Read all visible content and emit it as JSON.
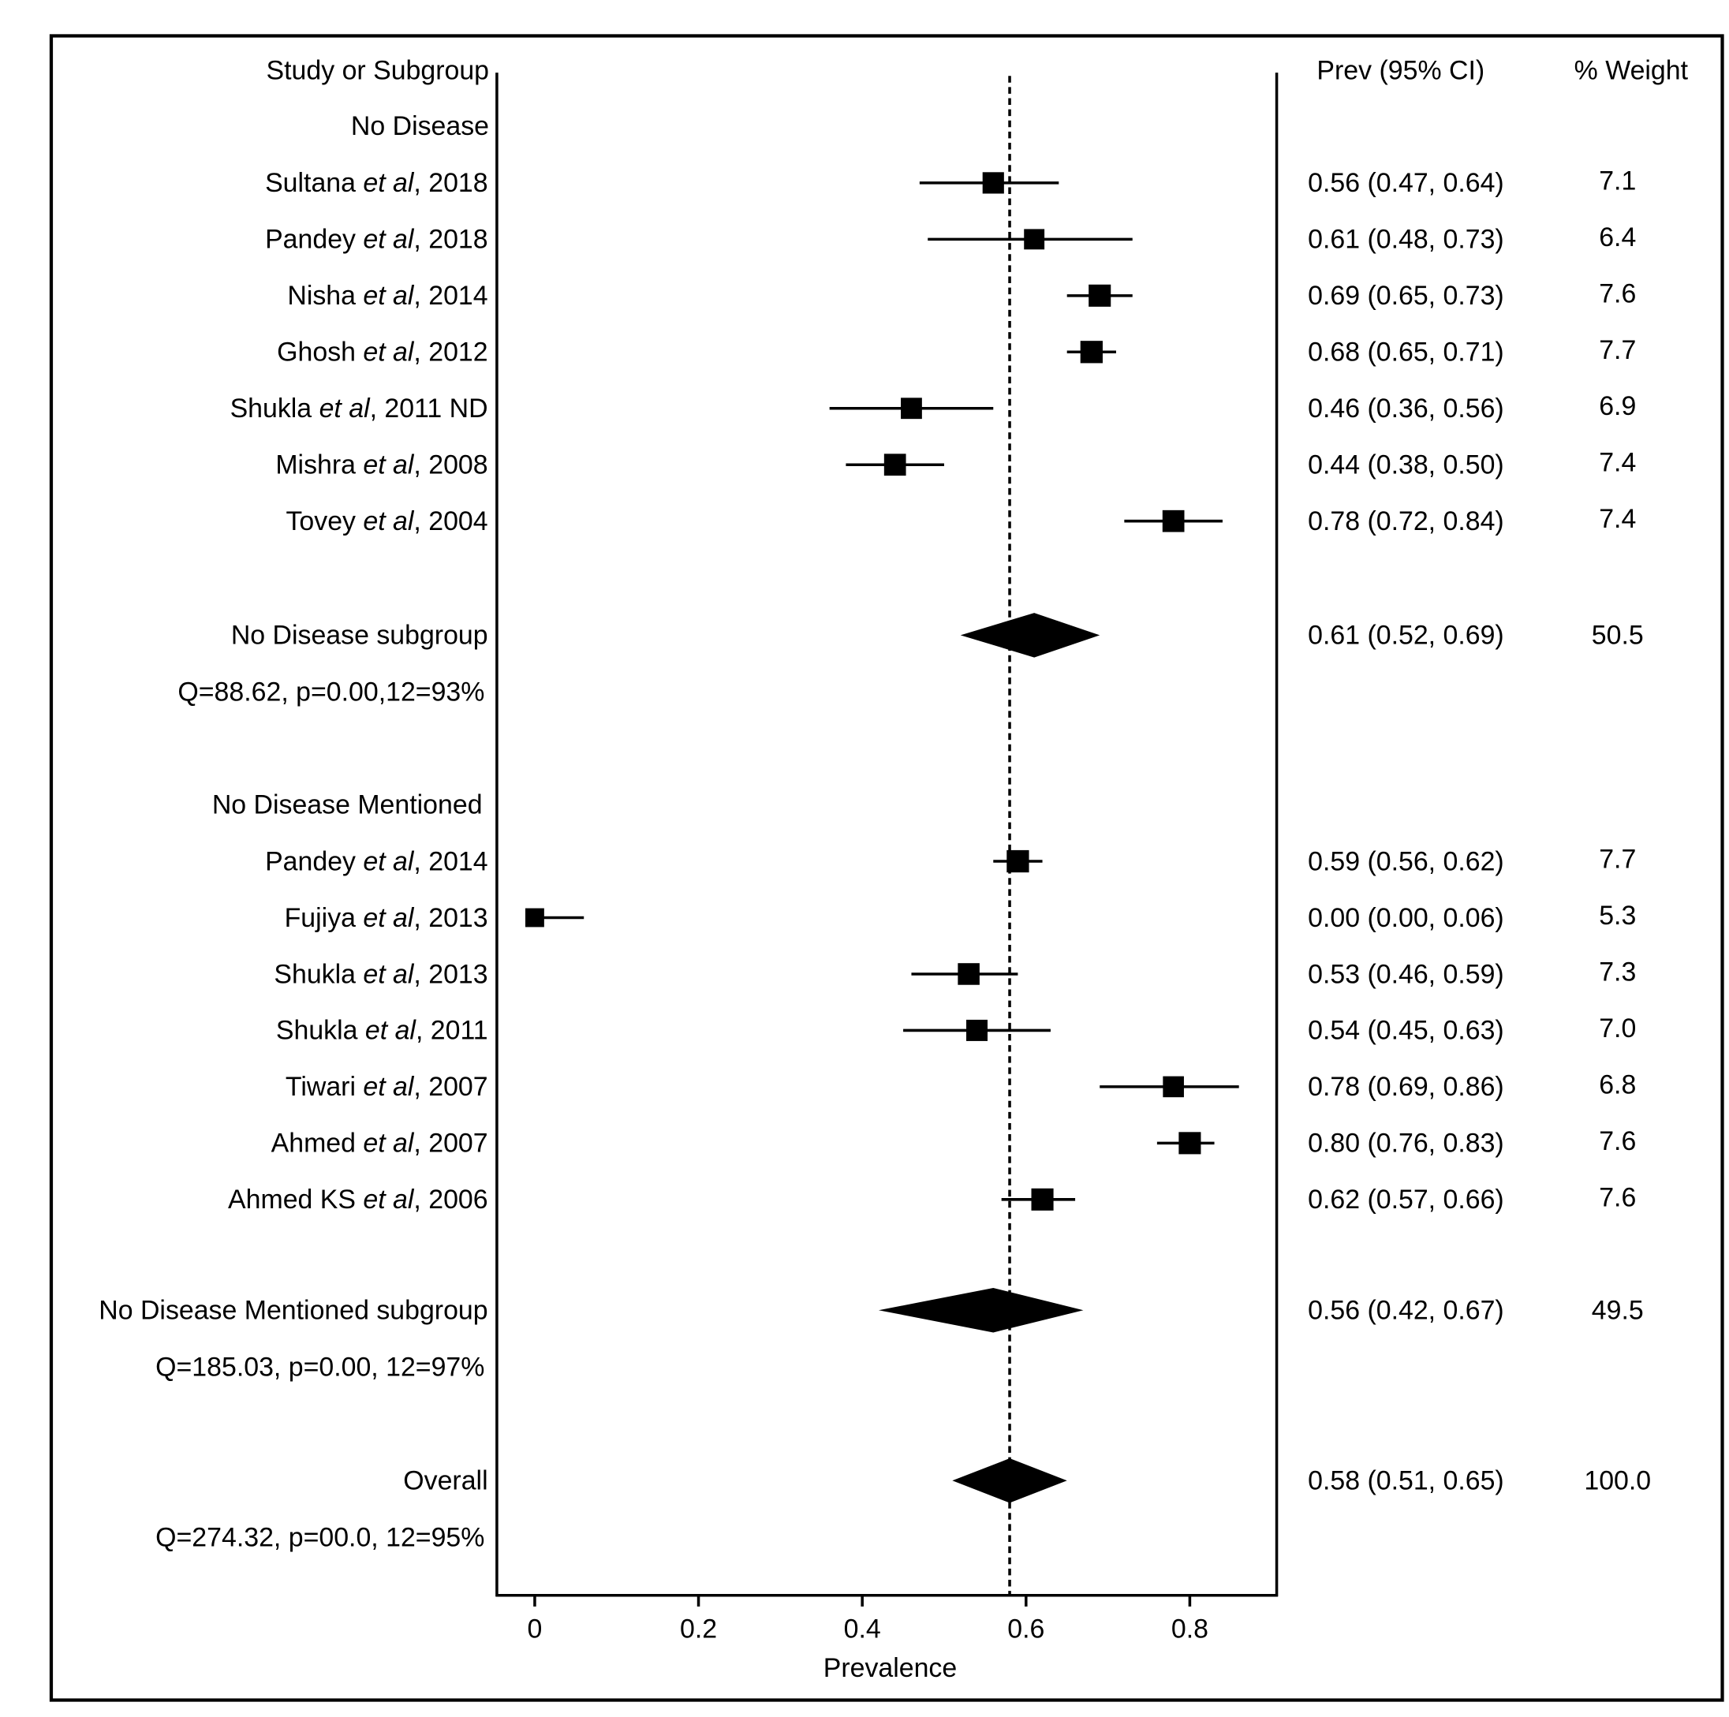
{
  "chart_data": {
    "type": "forest",
    "xlabel": "Prevalence",
    "xlim": [
      -0.05,
      0.9
    ],
    "xticks": [
      0,
      0.2,
      0.4,
      0.6,
      0.8
    ],
    "xtick_labels": [
      "0",
      "0.2",
      "0.4",
      "0.6",
      "0.8"
    ],
    "reference_line": 0.58,
    "headers": {
      "study": "Study or Subgroup",
      "prev": "Prev (95% CI)",
      "weight": "% Weight"
    },
    "groups": [
      {
        "name": "No Disease",
        "studies": [
          {
            "author": "Sultana",
            "suffix": ", 2018",
            "est": 0.56,
            "lo": 0.47,
            "hi": 0.64,
            "ci_text": "0.56 (0.47, 0.64)",
            "weight": "7.1"
          },
          {
            "author": "Pandey",
            "suffix": ", 2018",
            "est": 0.61,
            "lo": 0.48,
            "hi": 0.73,
            "ci_text": "0.61 (0.48, 0.73)",
            "weight": "6.4"
          },
          {
            "author": "Nisha",
            "suffix": ", 2014",
            "est": 0.69,
            "lo": 0.65,
            "hi": 0.73,
            "ci_text": "0.69 (0.65, 0.73)",
            "weight": "7.6"
          },
          {
            "author": "Ghosh",
            "suffix": ", 2012",
            "est": 0.68,
            "lo": 0.65,
            "hi": 0.71,
            "ci_text": "0.68 (0.65, 0.71)",
            "weight": "7.7"
          },
          {
            "author": "Shukla",
            "suffix": ", 2011 ND",
            "est": 0.46,
            "lo": 0.36,
            "hi": 0.56,
            "ci_text": "0.46 (0.36, 0.56)",
            "weight": "6.9"
          },
          {
            "author": "Mishra",
            "suffix": ", 2008",
            "est": 0.44,
            "lo": 0.38,
            "hi": 0.5,
            "ci_text": "0.44 (0.38, 0.50)",
            "weight": "7.4"
          },
          {
            "author": "Tovey",
            "suffix": ", 2004",
            "est": 0.78,
            "lo": 0.72,
            "hi": 0.84,
            "ci_text": "0.78 (0.72, 0.84)",
            "weight": "7.4"
          }
        ],
        "summary": {
          "label": "No Disease subgroup",
          "est": 0.61,
          "lo": 0.52,
          "hi": 0.69,
          "ci_text": "0.61 (0.52, 0.69)",
          "weight": "50.5",
          "stats": "Q=88.62, p=0.00,12=93%"
        }
      },
      {
        "name": "No Disease Mentioned",
        "studies": [
          {
            "author": "Pandey",
            "suffix": ", 2014",
            "est": 0.59,
            "lo": 0.56,
            "hi": 0.62,
            "ci_text": "0.59 (0.56, 0.62)",
            "weight": "7.7"
          },
          {
            "author": "Fujiya",
            "suffix": ", 2013",
            "est": 0.0,
            "lo": 0.0,
            "hi": 0.06,
            "ci_text": "0.00 (0.00, 0.06)",
            "weight": "5.3"
          },
          {
            "author": "Shukla",
            "suffix": ", 2013",
            "est": 0.53,
            "lo": 0.46,
            "hi": 0.59,
            "ci_text": "0.53 (0.46, 0.59)",
            "weight": "7.3"
          },
          {
            "author": "Shukla",
            "suffix": ", 2011",
            "est": 0.54,
            "lo": 0.45,
            "hi": 0.63,
            "ci_text": "0.54 (0.45, 0.63)",
            "weight": "7.0"
          },
          {
            "author": "Tiwari",
            "suffix": ", 2007",
            "est": 0.78,
            "lo": 0.69,
            "hi": 0.86,
            "ci_text": "0.78 (0.69, 0.86)",
            "weight": "6.8"
          },
          {
            "author": "Ahmed",
            "suffix": ", 2007",
            "est": 0.8,
            "lo": 0.76,
            "hi": 0.83,
            "ci_text": "0.80 (0.76, 0.83)",
            "weight": "7.6"
          },
          {
            "author": "Ahmed KS",
            "suffix": ", 2006",
            "est": 0.62,
            "lo": 0.57,
            "hi": 0.66,
            "ci_text": "0.62 (0.57, 0.66)",
            "weight": "7.6"
          }
        ],
        "summary": {
          "label": "No Disease Mentioned subgroup",
          "est": 0.56,
          "lo": 0.42,
          "hi": 0.67,
          "ci_text": "0.56 (0.42, 0.67)",
          "weight": "49.5",
          "stats": "Q=185.03, p=0.00, 12=97%"
        }
      }
    ],
    "overall": {
      "label": "Overall",
      "est": 0.58,
      "lo": 0.51,
      "hi": 0.65,
      "ci_text": "0.58 (0.51, 0.65)",
      "weight": "100.0",
      "stats": "Q=274.32, p=00.0, 12=95%"
    },
    "etal": "et al"
  }
}
